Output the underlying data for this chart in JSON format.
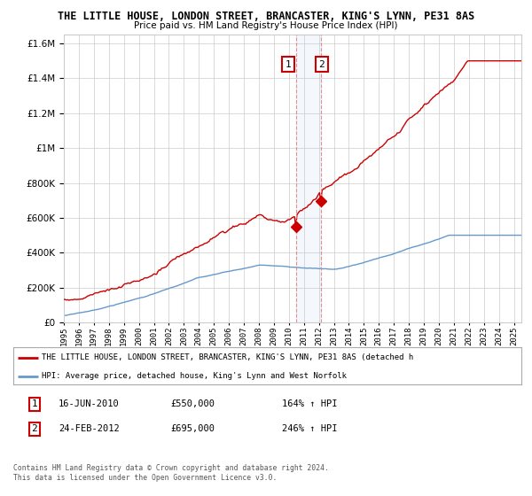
{
  "title": "THE LITTLE HOUSE, LONDON STREET, BRANCASTER, KING'S LYNN, PE31 8AS",
  "subtitle": "Price paid vs. HM Land Registry's House Price Index (HPI)",
  "legend_line1": "THE LITTLE HOUSE, LONDON STREET, BRANCASTER, KING'S LYNN, PE31 8AS (detached h",
  "legend_line2": "HPI: Average price, detached house, King's Lynn and West Norfolk",
  "footer1": "Contains HM Land Registry data © Crown copyright and database right 2024.",
  "footer2": "This data is licensed under the Open Government Licence v3.0.",
  "transaction1_date": "16-JUN-2010",
  "transaction1_price": "£550,000",
  "transaction1_hpi": "164% ↑ HPI",
  "transaction1_x": 2010.46,
  "transaction1_y": 550000,
  "transaction2_date": "24-FEB-2012",
  "transaction2_price": "£695,000",
  "transaction2_hpi": "246% ↑ HPI",
  "transaction2_x": 2012.15,
  "transaction2_y": 695000,
  "red_color": "#cc0000",
  "blue_color": "#6699cc",
  "background_color": "#ffffff",
  "grid_color": "#cccccc",
  "ylim": [
    0,
    1650000
  ],
  "xlim_start": 1995.0,
  "xlim_end": 2025.5
}
